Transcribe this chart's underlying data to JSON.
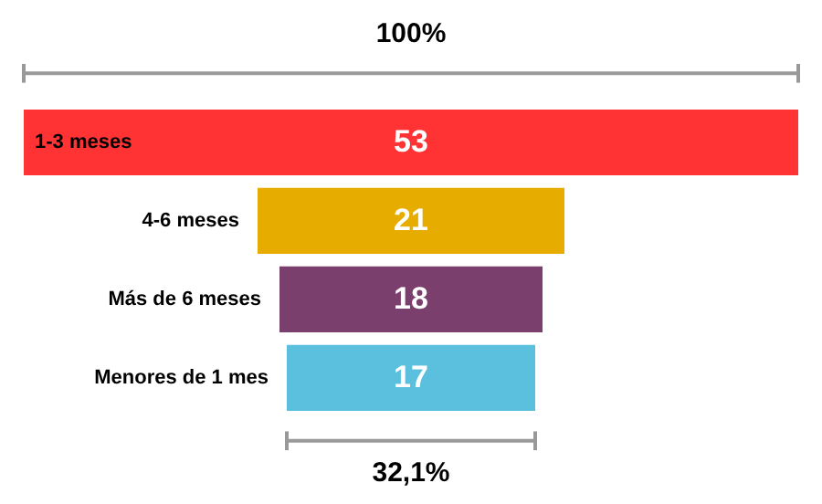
{
  "chart_data": {
    "type": "other",
    "categories": [
      "1-3 meses",
      "4-6 meses",
      "Más de 6 meses",
      "Menores de 1 mes"
    ],
    "values": [
      53,
      21,
      18,
      17
    ],
    "colors": [
      "#ff3333",
      "#e6ac00",
      "#7b3f6e",
      "#5bc0de"
    ],
    "data_labels": true,
    "annotations": [
      "100%",
      "32,1%"
    ]
  }
}
